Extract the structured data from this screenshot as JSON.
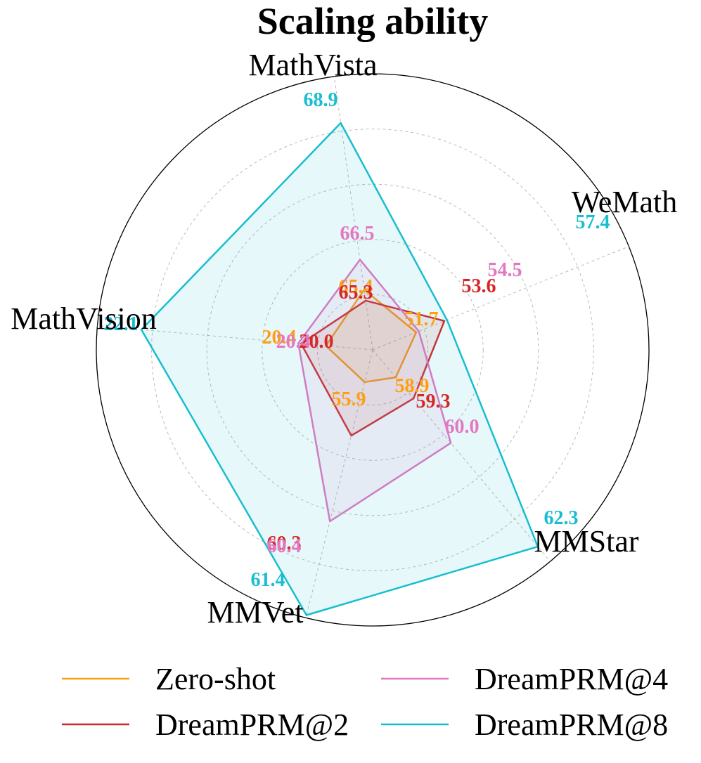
{
  "chart_data": {
    "type": "radar",
    "title": "Scaling ability",
    "axes": [
      "MathVista",
      "WeMath",
      "MMStar",
      "MMVet",
      "MathVision"
    ],
    "series": [
      {
        "name": "Zero-shot",
        "color": "#ff9f10",
        "values": [
          65.4,
          51.7,
          58.9,
          55.9,
          20.4
        ],
        "labels": [
          "65.4",
          "51.7",
          "58.9",
          "55.9",
          "20.4"
        ]
      },
      {
        "name": "DreamPRM@2",
        "color": "#d62728",
        "values": [
          65.3,
          53.6,
          59.3,
          60.3,
          20.0
        ],
        "labels": [
          "65.3",
          "53.6",
          "59.3",
          "60.3",
          "20.0"
        ]
      },
      {
        "name": "DreamPRM@4",
        "color": "#e377c2",
        "values": [
          66.5,
          54.5,
          60.0,
          60.4,
          20.4
        ],
        "labels": [
          "66.5",
          "54.5",
          "60.0",
          "60.4",
          "20.4"
        ]
      },
      {
        "name": "DreamPRM@8",
        "color": "#17becf",
        "values": [
          68.9,
          57.4,
          62.3,
          61.4,
          22.1
        ],
        "labels": [
          "68.9",
          "57.4",
          "62.3",
          "61.4",
          "22.1"
        ]
      }
    ],
    "grid": true,
    "legend_position": "bottom"
  }
}
